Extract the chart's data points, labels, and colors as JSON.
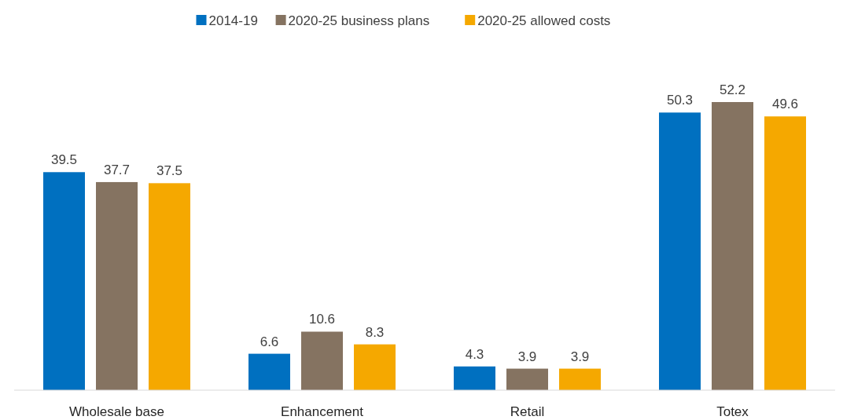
{
  "chart_data": {
    "type": "bar",
    "categories": [
      "Wholesale base",
      "Enhancement",
      "Retail",
      "Totex"
    ],
    "series": [
      {
        "name": "2014-19",
        "color": "#0070c0",
        "values": [
          39.5,
          6.6,
          4.3,
          50.3
        ]
      },
      {
        "name": "2020-25 business plans",
        "color": "#857361",
        "values": [
          37.7,
          10.6,
          3.9,
          52.2
        ]
      },
      {
        "name": "2020-25 allowed costs",
        "color": "#f5a800",
        "values": [
          37.5,
          8.3,
          3.9,
          49.6
        ]
      }
    ],
    "data_labels": true,
    "legend": "top"
  }
}
